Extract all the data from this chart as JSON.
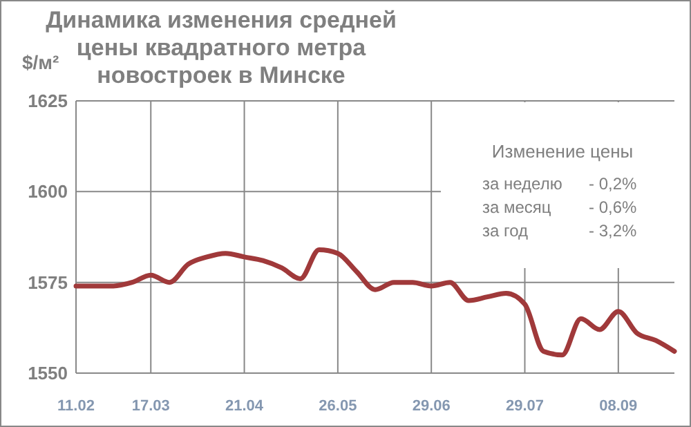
{
  "chart_data": {
    "type": "line",
    "title": "Динамика изменения средней\nцены квадратного метра\nновостроек в Минске",
    "ylabel": "$/м²",
    "categories": [
      "11.02",
      null,
      null,
      null,
      "17.03",
      null,
      null,
      null,
      null,
      "21.04",
      null,
      null,
      null,
      null,
      "26.05",
      null,
      null,
      null,
      null,
      "29.06",
      null,
      null,
      null,
      null,
      "29.07",
      null,
      null,
      null,
      null,
      "08.09",
      null,
      null,
      null
    ],
    "series": [
      {
        "color": "#a0393a",
        "values": [
          1574,
          1574,
          1574,
          1575,
          1577,
          1575,
          1580,
          1582,
          1583,
          1582,
          1581,
          1579,
          1576,
          1584,
          1583,
          1578,
          1573,
          1575,
          1575,
          1574,
          1575,
          1570,
          1571,
          1572,
          1569,
          1556,
          1555,
          1565,
          1562,
          1567,
          1561,
          1559,
          1556
        ]
      }
    ],
    "ylim": [
      1550,
      1625
    ],
    "yticks": [
      1550,
      1575,
      1600,
      1625
    ],
    "grid": true,
    "marker": "none",
    "line_style": "solid",
    "annotations": [
      "Изменение цены",
      "за неделю",
      "- 0,2%",
      "за месяц",
      "- 0,6%",
      "за год",
      "- 3,2%"
    ]
  }
}
